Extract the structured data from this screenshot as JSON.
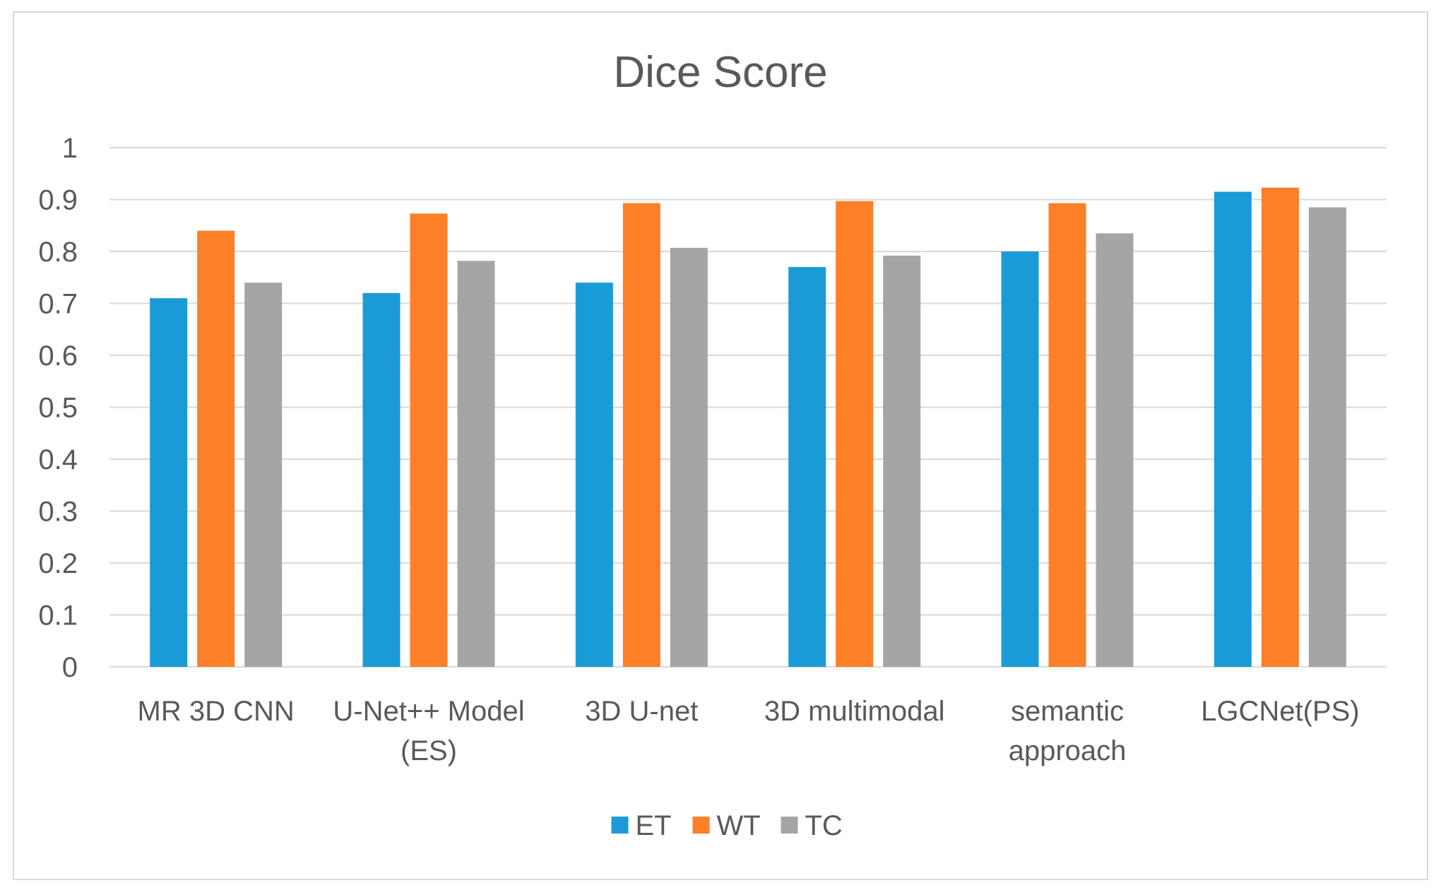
{
  "chart_data": {
    "type": "bar",
    "title": "Dice Score",
    "xlabel": "",
    "ylabel": "",
    "ylim": [
      0,
      1
    ],
    "yticks": [
      "0",
      "0.1",
      "0.2",
      "0.3",
      "0.4",
      "0.5",
      "0.6",
      "0.7",
      "0.8",
      "0.9",
      "1"
    ],
    "grid": true,
    "legend_position": "bottom",
    "categories": [
      [
        "MR 3D CNN"
      ],
      [
        "U-Net++ Model",
        "(ES)"
      ],
      [
        "3D U-net"
      ],
      [
        "3D multimodal"
      ],
      [
        "semantic",
        "approach"
      ],
      [
        "LGCNet(PS)"
      ]
    ],
    "series": [
      {
        "name": "ET",
        "color": "#1a9bd7",
        "values": [
          0.71,
          0.72,
          0.74,
          0.77,
          0.8,
          0.915
        ]
      },
      {
        "name": "WT",
        "color": "#fd7f27",
        "values": [
          0.84,
          0.873,
          0.893,
          0.897,
          0.893,
          0.923
        ]
      },
      {
        "name": "TC",
        "color": "#a5a5a5",
        "values": [
          0.74,
          0.782,
          0.807,
          0.792,
          0.835,
          0.885
        ]
      }
    ]
  }
}
